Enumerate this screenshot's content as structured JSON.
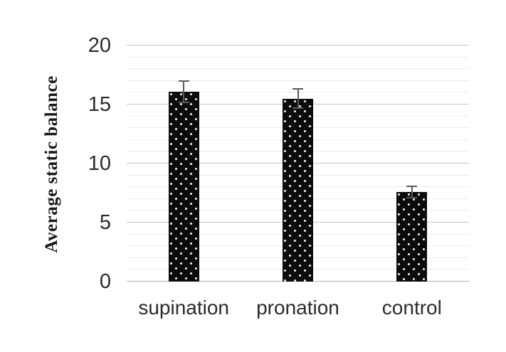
{
  "chart_data": {
    "type": "bar",
    "title": "",
    "xlabel": "",
    "ylabel": "Average static balance",
    "categories": [
      "supination",
      "pronation",
      "control"
    ],
    "series": [
      {
        "name": "Average static balance",
        "values": [
          16.1,
          15.5,
          7.6
        ],
        "error_bars_plus_minus": [
          0.9,
          0.8,
          0.5
        ]
      }
    ],
    "ylim": [
      0,
      20
    ],
    "yticks": [
      0,
      5,
      10,
      15,
      20
    ],
    "minor_gridline_step": 1,
    "major_gridline_step": 5,
    "grid": "horizontal minor and major gridlines",
    "legend_position": "none",
    "bar_style": "black fill with white polka-dot pattern, gray error bar whiskers with caps",
    "colors": {
      "bar_fill": "#0b0b0b",
      "bar_dots": "#ffffff",
      "error_bar": "#5a5a5a",
      "grid_major": "#c6c6c6",
      "grid_minor": "#ececec",
      "axis_zero_line": "#b0b0b0",
      "tick_text": "#2b2b2b",
      "axis_title_text": "#1a1a1a",
      "background": "#ffffff"
    }
  }
}
